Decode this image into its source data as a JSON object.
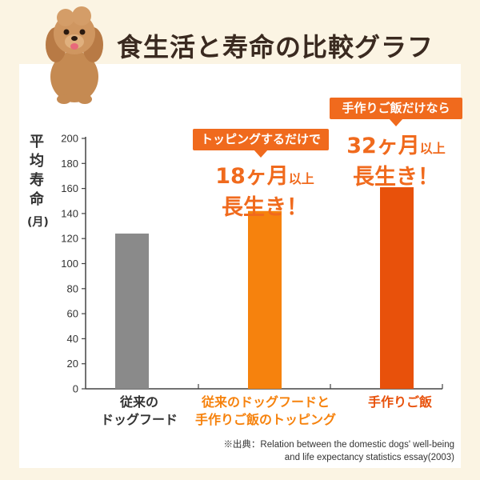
{
  "header": {
    "title": "食生活と寿命の比較グラフ",
    "mascot_icon": "dog-icon"
  },
  "colors": {
    "background": "#fbf4e3",
    "panel": "#ffffff",
    "gray_bar": "#8a8a8a",
    "orange_bar": "#f6820d",
    "red_orange_bar": "#e8510b",
    "accent": "#f06a1d",
    "text_dark": "#333333"
  },
  "y_axis": {
    "label": "平均寿命",
    "unit": "(月)"
  },
  "callouts": [
    {
      "box": "トッピングするだけで",
      "lead": "18ヶ月",
      "suffix": "以上",
      "line2": "長生き！"
    },
    {
      "box": "手作りご飯だけなら",
      "lead": "32ヶ月",
      "suffix": "以上",
      "line2": "長生き！"
    }
  ],
  "categories_display": [
    {
      "line1": "従来の",
      "line2": "ドッグフード"
    },
    {
      "line1": "従来のドッグフードと",
      "line2": "手作りご飯のトッピング"
    },
    {
      "line1": "手作りご飯",
      "line2": ""
    }
  ],
  "source": {
    "line1": "※出典：Relation between the domestic dogs' well-being",
    "line2": "and life expectancy statistics essay(2003)"
  },
  "chart_data": {
    "type": "bar",
    "title": "食生活と寿命の比較グラフ",
    "ylabel": "平均寿命 (月)",
    "xlabel": "",
    "categories": [
      "従来のドッグフード",
      "従来のドッグフードと手作りご飯のトッピング",
      "手作りご飯"
    ],
    "values": [
      124,
      142,
      161
    ],
    "bar_colors": [
      "#8a8a8a",
      "#f6820d",
      "#e8510b"
    ],
    "ylim": [
      0,
      200
    ],
    "yticks": [
      0,
      20,
      40,
      60,
      80,
      100,
      120,
      140,
      160,
      180,
      200
    ],
    "grid": false,
    "legend": "none"
  }
}
